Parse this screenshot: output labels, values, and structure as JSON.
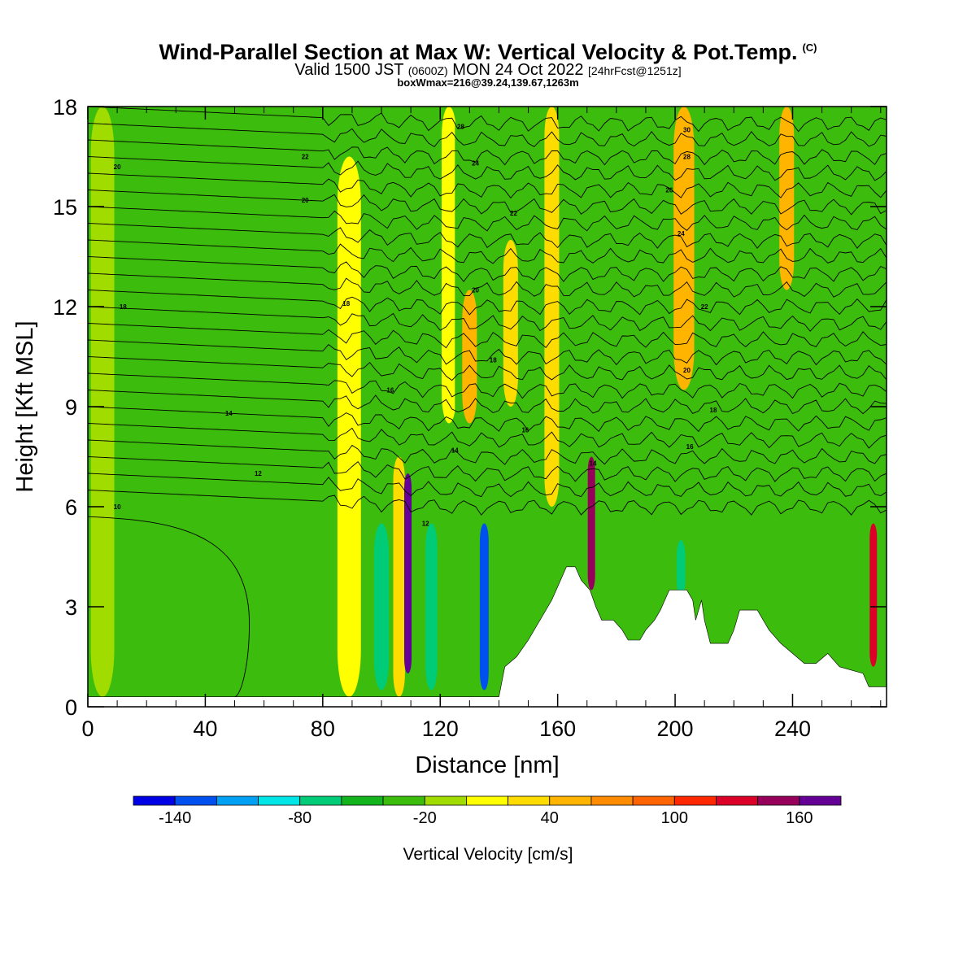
{
  "title": {
    "main": "Wind-Parallel Section at Max W: Vertical Velocity & Pot.Temp.",
    "copyright": "(C)",
    "valid_prefix": "Valid 1500 JST",
    "valid_utc": "(0600Z)",
    "valid_date": "MON 24 Oct 2022",
    "forecast": "[24hrFcst@1251z]",
    "boxwmax": "boxWmax=216@39.24,139.67,1263m"
  },
  "colors": {
    "background_green": "#3cbc0c",
    "terrain": "#ffffff",
    "contour": "#000000"
  },
  "chart_data": {
    "type": "heatmap",
    "xlabel": "Distance [nm]",
    "ylabel": "Height [Kft MSL]",
    "xlim": [
      0,
      272
    ],
    "ylim": [
      0,
      18
    ],
    "x_ticks": [
      "0",
      "40",
      "80",
      "120",
      "160",
      "200",
      "240"
    ],
    "x_tick_values": [
      0,
      40,
      80,
      120,
      160,
      200,
      240
    ],
    "y_ticks": [
      "0",
      "3",
      "6",
      "9",
      "12",
      "15",
      "18"
    ],
    "y_tick_values": [
      0,
      3,
      6,
      9,
      12,
      15,
      18
    ],
    "colorbar": {
      "title": "Vertical Velocity [cm/s]",
      "labels": [
        "-140",
        "-80",
        "-20",
        "40",
        "100",
        "160"
      ],
      "label_values": [
        -140,
        -80,
        -20,
        40,
        100,
        160
      ],
      "min": -160,
      "max": 190,
      "bin_width": 20,
      "colors": [
        "#0000e6",
        "#0050f0",
        "#00a0f5",
        "#00e6e6",
        "#00cc78",
        "#14b41e",
        "#3cbc0c",
        "#a0dc00",
        "#ffff00",
        "#ffdc00",
        "#ffb400",
        "#ff8c00",
        "#ff6400",
        "#ff2800",
        "#dc0028",
        "#96005a",
        "#640096"
      ]
    },
    "vertical_velocity_bands": [
      {
        "x": 5,
        "width": 8,
        "top": 18,
        "bottom": 0.3,
        "value": -5
      },
      {
        "x": 89,
        "width": 8,
        "top": 16.5,
        "bottom": 0.3,
        "value": 10
      },
      {
        "x": 100,
        "width": 5,
        "top": 5.5,
        "bottom": 0.5,
        "value": -70
      },
      {
        "x": 106,
        "width": 4,
        "top": 7.5,
        "bottom": 0.3,
        "value": 30
      },
      {
        "x": 109,
        "width": 2.5,
        "top": 7,
        "bottom": 1.0,
        "value": 170
      },
      {
        "x": 117,
        "width": 4,
        "top": 5.5,
        "bottom": 0.5,
        "value": -70
      },
      {
        "x": 123,
        "width": 5,
        "top": 18,
        "bottom": 8.5,
        "value": 15
      },
      {
        "x": 127,
        "width": 4,
        "top": 18,
        "bottom": 3.0,
        "value": -30
      },
      {
        "x": 130,
        "width": 5,
        "top": 12.5,
        "bottom": 8.5,
        "value": 40
      },
      {
        "x": 135,
        "width": 3,
        "top": 5.5,
        "bottom": 0.5,
        "value": -140
      },
      {
        "x": 144,
        "width": 5,
        "top": 14,
        "bottom": 9,
        "value": 30
      },
      {
        "x": 148,
        "width": 3,
        "top": 18,
        "bottom": 10,
        "value": -30
      },
      {
        "x": 158,
        "width": 5,
        "top": 18,
        "bottom": 6,
        "value": 25
      },
      {
        "x": 171.5,
        "width": 2.5,
        "top": 7.5,
        "bottom": 3.5,
        "value": 150
      },
      {
        "x": 178,
        "width": 4,
        "top": 18,
        "bottom": 4,
        "value": -30
      },
      {
        "x": 188,
        "width": 4,
        "top": 18,
        "bottom": 4,
        "value": -35
      },
      {
        "x": 203,
        "width": 7,
        "top": 18,
        "bottom": 9.5,
        "value": 40
      },
      {
        "x": 202,
        "width": 3,
        "top": 5,
        "bottom": 3.3,
        "value": -70
      },
      {
        "x": 238,
        "width": 5,
        "top": 18,
        "bottom": 12.5,
        "value": 45
      },
      {
        "x": 267.5,
        "width": 2.5,
        "top": 5.5,
        "bottom": 1.2,
        "value": 130
      }
    ],
    "potential_temperature_contours": {
      "labels": [
        {
          "x": 10,
          "y": 6.0,
          "text": "10"
        },
        {
          "x": 58,
          "y": 7.0,
          "text": "12"
        },
        {
          "x": 48,
          "y": 8.8,
          "text": "14"
        },
        {
          "x": 12,
          "y": 12.0,
          "text": "18"
        },
        {
          "x": 10,
          "y": 16.2,
          "text": "20"
        },
        {
          "x": 74,
          "y": 16.5,
          "text": "22"
        },
        {
          "x": 74,
          "y": 15.2,
          "text": "20"
        },
        {
          "x": 88,
          "y": 12.1,
          "text": "18"
        },
        {
          "x": 103,
          "y": 9.5,
          "text": "16"
        },
        {
          "x": 115,
          "y": 5.5,
          "text": "12"
        },
        {
          "x": 125,
          "y": 7.7,
          "text": "14"
        },
        {
          "x": 127,
          "y": 17.4,
          "text": "28"
        },
        {
          "x": 132,
          "y": 16.3,
          "text": "24"
        },
        {
          "x": 145,
          "y": 14.8,
          "text": "22"
        },
        {
          "x": 132,
          "y": 12.5,
          "text": "20"
        },
        {
          "x": 138,
          "y": 10.4,
          "text": "18"
        },
        {
          "x": 149,
          "y": 8.3,
          "text": "16"
        },
        {
          "x": 172,
          "y": 7.3,
          "text": "14"
        },
        {
          "x": 204,
          "y": 17.3,
          "text": "30"
        },
        {
          "x": 204,
          "y": 16.5,
          "text": "28"
        },
        {
          "x": 198,
          "y": 15.5,
          "text": "26"
        },
        {
          "x": 202,
          "y": 14.2,
          "text": "24"
        },
        {
          "x": 210,
          "y": 12.0,
          "text": "22"
        },
        {
          "x": 204,
          "y": 10.1,
          "text": "20"
        },
        {
          "x": 213,
          "y": 8.9,
          "text": "18"
        },
        {
          "x": 205,
          "y": 7.8,
          "text": "16"
        }
      ]
    },
    "terrain_profile": [
      [
        0,
        0.3
      ],
      [
        140,
        0.3
      ],
      [
        142,
        1.2
      ],
      [
        146,
        1.5
      ],
      [
        150,
        2.0
      ],
      [
        154,
        2.6
      ],
      [
        158,
        3.2
      ],
      [
        161,
        3.8
      ],
      [
        163,
        4.2
      ],
      [
        166,
        4.2
      ],
      [
        168,
        3.8
      ],
      [
        171,
        3.5
      ],
      [
        173,
        3.0
      ],
      [
        175,
        2.6
      ],
      [
        179,
        2.6
      ],
      [
        182,
        2.3
      ],
      [
        184,
        2.0
      ],
      [
        188,
        2.0
      ],
      [
        190,
        2.3
      ],
      [
        193,
        2.6
      ],
      [
        195,
        2.9
      ],
      [
        198,
        3.5
      ],
      [
        204,
        3.5
      ],
      [
        206,
        3.2
      ],
      [
        207,
        2.6
      ],
      [
        209,
        3.2
      ],
      [
        210,
        2.6
      ],
      [
        212,
        1.9
      ],
      [
        218,
        1.9
      ],
      [
        220,
        2.3
      ],
      [
        222,
        2.9
      ],
      [
        228,
        2.9
      ],
      [
        232,
        2.3
      ],
      [
        236,
        1.9
      ],
      [
        240,
        1.6
      ],
      [
        244,
        1.3
      ],
      [
        248,
        1.3
      ],
      [
        252,
        1.6
      ],
      [
        256,
        1.2
      ],
      [
        264,
        1.0
      ],
      [
        266,
        0.6
      ],
      [
        272,
        0.6
      ]
    ]
  }
}
